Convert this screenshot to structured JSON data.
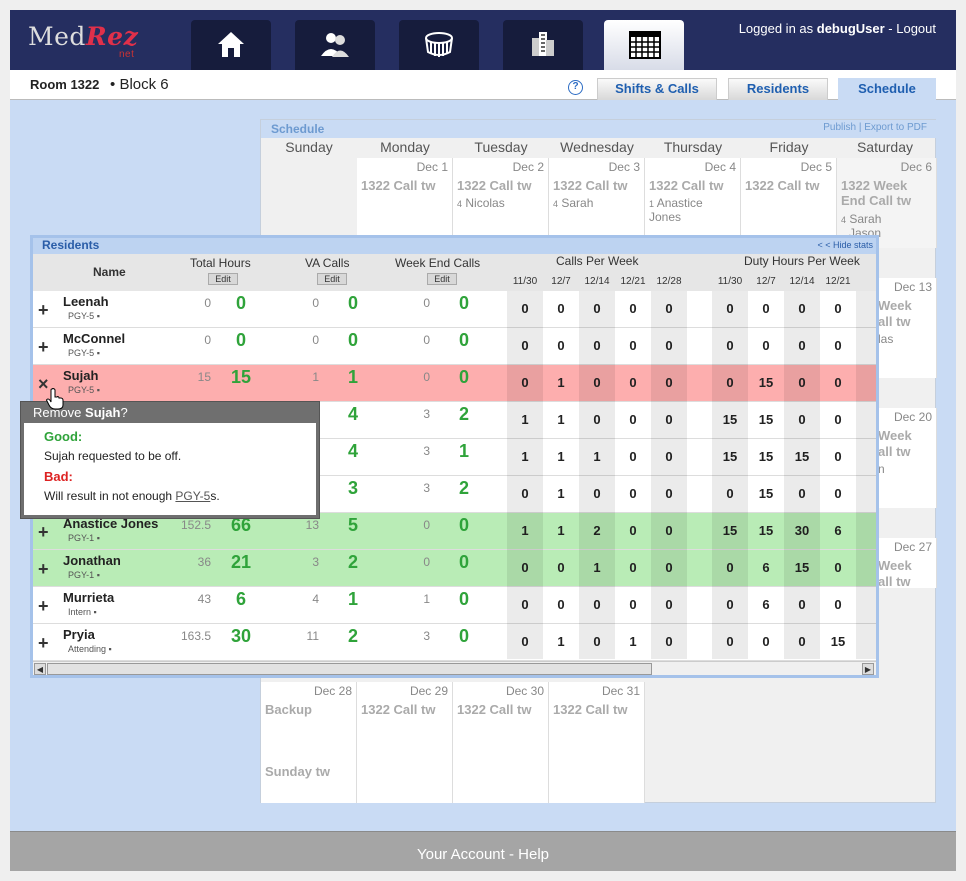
{
  "header": {
    "logo_main": "Med",
    "logo_accent": "Rez",
    "logo_suffix": "net",
    "logged_in_prefix": "Logged in as",
    "user": "debugUser",
    "logout": "Logout"
  },
  "nav": [
    {
      "icon": "home-icon"
    },
    {
      "icon": "people-icon"
    },
    {
      "icon": "stadium-icon"
    },
    {
      "icon": "building-icon"
    },
    {
      "icon": "calendar-icon",
      "active": true
    }
  ],
  "subbar": {
    "room": "Room 1322",
    "separator": "•",
    "block": "Block 6",
    "help": "?",
    "tabs": [
      "Shifts & Calls",
      "Residents",
      "Schedule"
    ],
    "active_tab": "Schedule"
  },
  "schedule": {
    "title": "Schedule",
    "links": "Publish | Export to PDF",
    "days": [
      "Sunday",
      "Monday",
      "Tuesday",
      "Wednesday",
      "Thursday",
      "Friday",
      "Saturday"
    ],
    "week1": [
      {
        "date": "Dec 1",
        "call": "1322 Call tw",
        "person": ""
      },
      {
        "date": "Dec 2",
        "call": "1322 Call tw",
        "pn": "4",
        "person": "Nicolas"
      },
      {
        "date": "Dec 3",
        "call": "1322 Call tw",
        "pn": "4",
        "person": "Sarah"
      },
      {
        "date": "Dec 4",
        "call": "1322 Call tw",
        "pn": "1",
        "person": "Anastice Jones"
      },
      {
        "date": "Dec 5",
        "call": "1322 Call tw",
        "person": ""
      },
      {
        "date": "Dec 6",
        "call": "1322 Week End Call tw",
        "pn": "4",
        "person": "Sarah",
        "person2": "Jason"
      }
    ],
    "right_dates": [
      "Dec 13",
      "Dec 20",
      "Dec 27"
    ],
    "right_calls": [
      "Week",
      "all tw"
    ],
    "right_frag": [
      "las",
      "n"
    ],
    "last": [
      {
        "date": "Dec 28",
        "call": "Backup",
        "call2": "Sunday tw"
      },
      {
        "date": "Dec 29",
        "call": "1322 Call tw"
      },
      {
        "date": "Dec 30",
        "call": "1322 Call tw"
      },
      {
        "date": "Dec 31",
        "call": "1322 Call tw"
      }
    ]
  },
  "residents": {
    "title": "Residents",
    "hide": "< < Hide stats",
    "headers": {
      "name": "Name",
      "total": "Total Hours",
      "va": "VA Calls",
      "weekend": "Week End Calls",
      "cpw": "Calls Per Week",
      "dhpw": "Duty Hours Per Week",
      "edit": "Edit"
    },
    "weeks": [
      "11/30",
      "12/7",
      "12/14",
      "12/21",
      "12/28"
    ],
    "duty_weeks": [
      "11/30",
      "12/7",
      "12/14",
      "12/21"
    ],
    "rows": [
      {
        "name": "Leenah",
        "level": "PGY-5",
        "th": "0",
        "thb": "0",
        "va": "0",
        "vab": "0",
        "we": "0",
        "web": "0",
        "cpw": [
          "0",
          "0",
          "0",
          "0",
          "0"
        ],
        "dh": [
          "0",
          "0",
          "0",
          "0"
        ],
        "state": "none",
        "sign": "+"
      },
      {
        "name": "McConnel",
        "level": "PGY-5",
        "th": "0",
        "thb": "0",
        "va": "0",
        "vab": "0",
        "we": "0",
        "web": "0",
        "cpw": [
          "0",
          "0",
          "0",
          "0",
          "0"
        ],
        "dh": [
          "0",
          "0",
          "0",
          "0"
        ],
        "state": "none",
        "sign": "+"
      },
      {
        "name": "Sujah",
        "level": "PGY-5",
        "th": "15",
        "thb": "15",
        "va": "1",
        "vab": "1",
        "we": "0",
        "web": "0",
        "cpw": [
          "0",
          "1",
          "0",
          "0",
          "0"
        ],
        "dh": [
          "0",
          "15",
          "0",
          "0"
        ],
        "state": "red",
        "sign": "×"
      },
      {
        "name": "",
        "level": "",
        "th": "",
        "thb": "",
        "va": "",
        "vab": "4",
        "we": "3",
        "web": "2",
        "cpw": [
          "1",
          "1",
          "0",
          "0",
          "0"
        ],
        "dh": [
          "15",
          "15",
          "0",
          "0"
        ],
        "state": "none",
        "sign": "+"
      },
      {
        "name": "",
        "level": "",
        "th": "",
        "thb": "",
        "va": "",
        "vab": "4",
        "we": "3",
        "web": "1",
        "cpw": [
          "1",
          "1",
          "1",
          "0",
          "0"
        ],
        "dh": [
          "15",
          "15",
          "15",
          "0"
        ],
        "state": "none",
        "sign": "+"
      },
      {
        "name": "",
        "level": "",
        "th": "",
        "thb": "",
        "va": "",
        "vab": "3",
        "we": "3",
        "web": "2",
        "cpw": [
          "0",
          "1",
          "0",
          "0",
          "0"
        ],
        "dh": [
          "0",
          "15",
          "0",
          "0"
        ],
        "state": "none",
        "sign": "+"
      },
      {
        "name": "Anastice Jones",
        "level": "PGY-1",
        "th": "152.5",
        "thb": "66",
        "va": "13",
        "vab": "5",
        "we": "0",
        "web": "0",
        "cpw": [
          "1",
          "1",
          "2",
          "0",
          "0"
        ],
        "dh": [
          "15",
          "15",
          "30",
          "6"
        ],
        "state": "green",
        "sign": "+"
      },
      {
        "name": "Jonathan",
        "level": "PGY-1",
        "th": "36",
        "thb": "21",
        "va": "3",
        "vab": "2",
        "we": "0",
        "web": "0",
        "cpw": [
          "0",
          "0",
          "1",
          "0",
          "0"
        ],
        "dh": [
          "0",
          "6",
          "15",
          "0"
        ],
        "state": "green",
        "sign": "+"
      },
      {
        "name": "Murrieta",
        "level": "Intern",
        "th": "43",
        "thb": "6",
        "va": "4",
        "vab": "1",
        "we": "1",
        "web": "0",
        "cpw": [
          "0",
          "0",
          "0",
          "0",
          "0"
        ],
        "dh": [
          "0",
          "6",
          "0",
          "0"
        ],
        "state": "none",
        "sign": "+"
      },
      {
        "name": "Pryia",
        "level": "Attending",
        "th": "163.5",
        "thb": "30",
        "va": "11",
        "vab": "2",
        "we": "3",
        "web": "0",
        "cpw": [
          "0",
          "1",
          "0",
          "1",
          "0"
        ],
        "dh": [
          "0",
          "0",
          "0",
          "15"
        ],
        "state": "none",
        "sign": "+"
      }
    ]
  },
  "popup": {
    "prefix": "Remove",
    "name": "Sujah",
    "suffix": "?",
    "good_label": "Good:",
    "good_text": "Sujah requested to be off.",
    "bad_label": "Bad:",
    "bad_text_pre": "Will result in not enough",
    "bad_link": "PGY-5",
    "bad_text_post": "s."
  },
  "footer": {
    "account": "Your Account",
    "sep": " - ",
    "help": "Help"
  },
  "colors": {
    "header": "#252e60",
    "accent": "#e0304a",
    "green_row": "#b9ecb6",
    "red_row": "#fdaeae",
    "big_num": "#2fa33a"
  }
}
